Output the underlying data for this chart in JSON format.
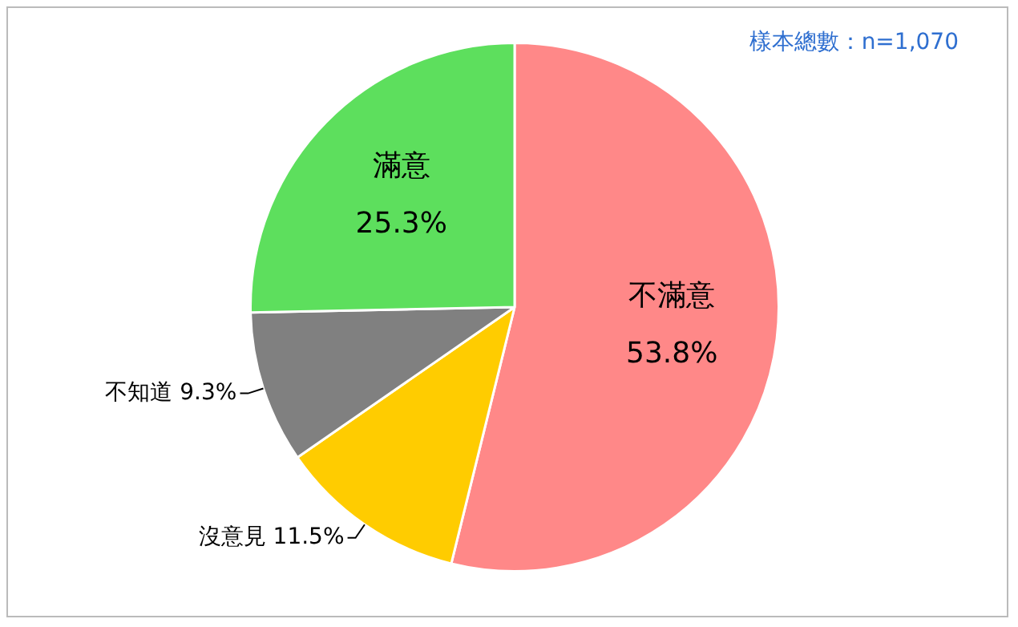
{
  "chart_data": {
    "type": "pie",
    "categories": [
      "不滿意",
      "沒意見",
      "不知道",
      "滿意"
    ],
    "values": [
      53.8,
      11.5,
      9.3,
      25.3
    ],
    "value_labels": [
      "53.8%",
      "11.5%",
      "9.3%",
      "25.3%"
    ],
    "colors": [
      "#ff8888",
      "#ffcc00",
      "#808080",
      "#5ddf5d"
    ],
    "annotations": [
      "樣本總數：n=1,070"
    ]
  }
}
